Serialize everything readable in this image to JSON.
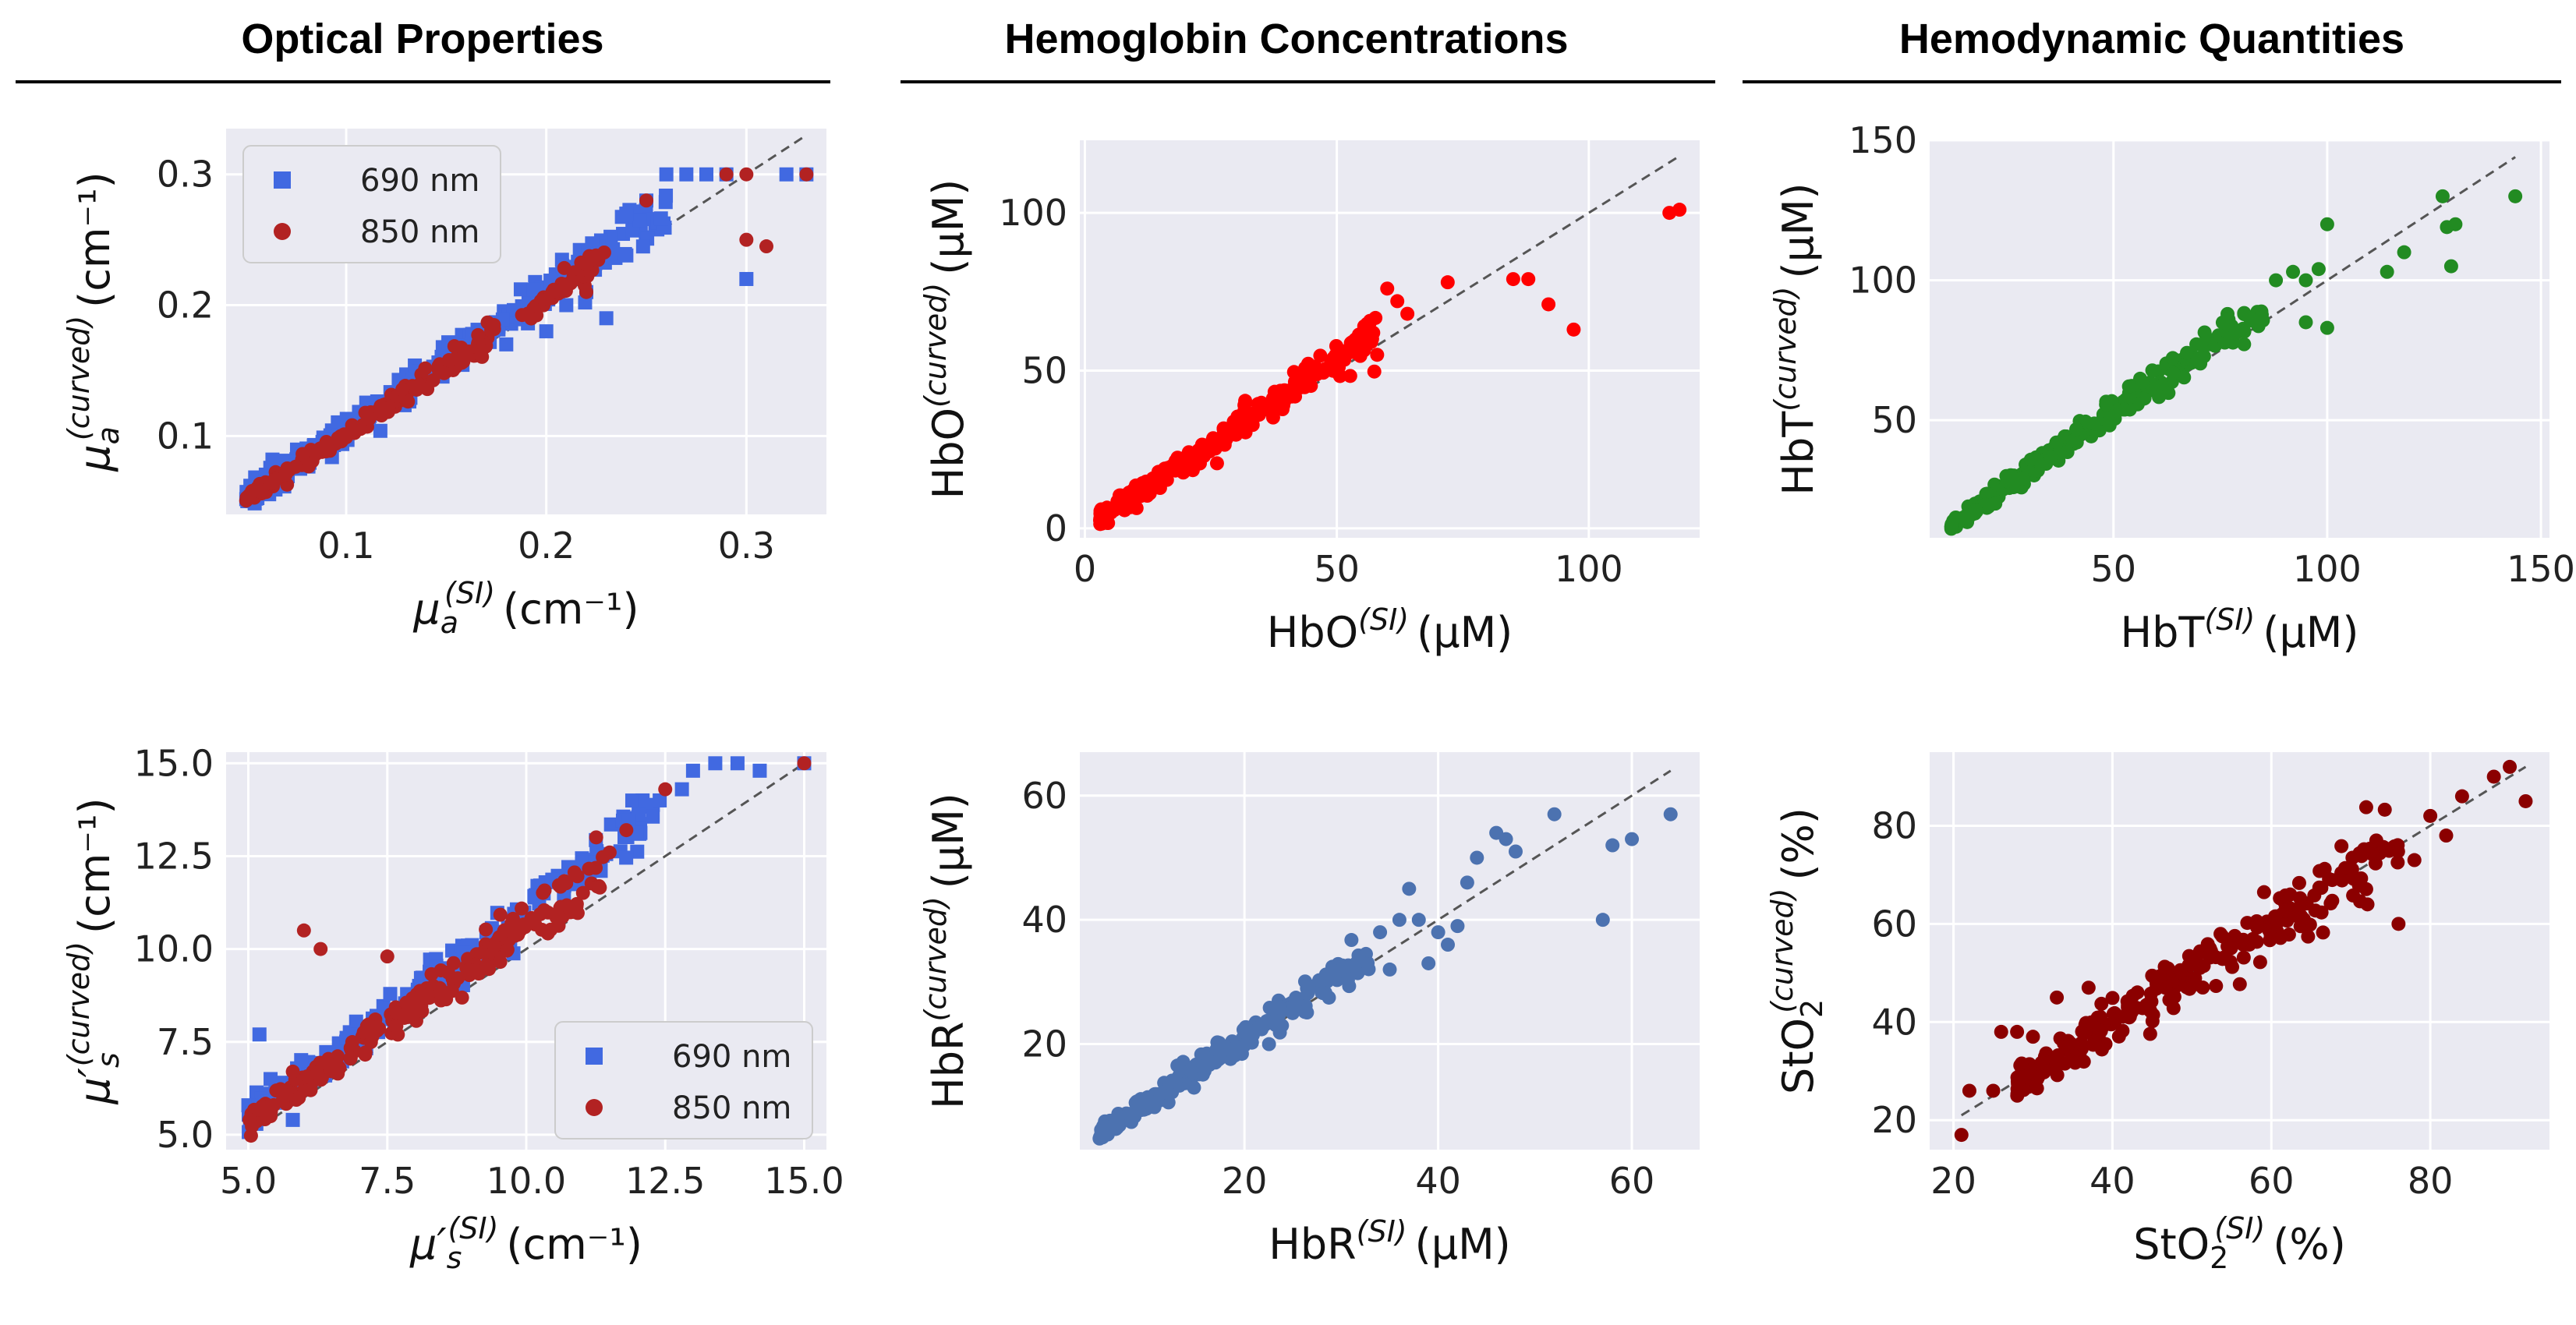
{
  "column_titles": [
    "Optical Properties",
    "Hemoglobin Concentrations",
    "Hemodynamic Quantities"
  ],
  "chart_data": [
    {
      "id": "mua",
      "type": "scatter",
      "xlabel": {
        "base": "μ",
        "sub": "a",
        "sup": "(SI)",
        "unit": "(cm⁻¹)"
      },
      "ylabel": {
        "base": "μ",
        "sub": "a",
        "sup": "(curved)",
        "unit": "(cm⁻¹)"
      },
      "xlim": [
        0.04,
        0.34
      ],
      "ylim": [
        0.04,
        0.335
      ],
      "xticks": [
        "0.1",
        "0.2",
        "0.3"
      ],
      "yticks": [
        "0.1",
        "0.2",
        "0.3"
      ],
      "xtick_values": [
        0.1,
        0.2,
        0.3
      ],
      "ytick_values": [
        0.1,
        0.2,
        0.3
      ],
      "identity_line": [
        0.05,
        0.33
      ],
      "legend": {
        "position": "top-left",
        "entries": [
          {
            "label": "690 nm",
            "color": "#4169E1",
            "marker": "square"
          },
          {
            "label": "850 nm",
            "color": "#B22222",
            "marker": "circle"
          }
        ]
      },
      "series": [
        {
          "name": "690 nm",
          "color": "#4169E1",
          "marker": "square",
          "n": 220,
          "range": [
            0.05,
            0.26
          ],
          "slope": 1.06,
          "noise": 0.007,
          "extra": [
            [
              0.24,
              0.27
            ],
            [
              0.25,
              0.28
            ],
            [
              0.26,
              0.3
            ],
            [
              0.27,
              0.3
            ],
            [
              0.28,
              0.3
            ],
            [
              0.29,
              0.3
            ],
            [
              0.3,
              0.22
            ],
            [
              0.32,
              0.3
            ],
            [
              0.33,
              0.3
            ],
            [
              0.22,
              0.21
            ],
            [
              0.23,
              0.19
            ],
            [
              0.2,
              0.18
            ],
            [
              0.21,
              0.2
            ],
            [
              0.18,
              0.17
            ]
          ]
        },
        {
          "name": "850 nm",
          "color": "#B22222",
          "marker": "circle",
          "n": 200,
          "range": [
            0.05,
            0.23
          ],
          "slope": 1.02,
          "noise": 0.004,
          "extra": [
            [
              0.25,
              0.28
            ],
            [
              0.29,
              0.3
            ],
            [
              0.3,
              0.3
            ],
            [
              0.3,
              0.25
            ],
            [
              0.31,
              0.245
            ],
            [
              0.33,
              0.3
            ],
            [
              0.22,
              0.21
            ]
          ]
        }
      ]
    },
    {
      "id": "hbo",
      "type": "scatter",
      "xlabel": {
        "base": "HbO",
        "sub": "",
        "sup": "(SI)",
        "unit": "(μM)"
      },
      "ylabel": {
        "base": "HbO",
        "sub": "",
        "sup": "(curved)",
        "unit": "(μM)"
      },
      "xlim": [
        -1,
        122
      ],
      "ylim": [
        -3,
        123
      ],
      "xticks": [
        "0",
        "50",
        "100"
      ],
      "yticks": [
        "0",
        "50",
        "100"
      ],
      "xtick_values": [
        0,
        50,
        100
      ],
      "ytick_values": [
        0,
        50,
        100
      ],
      "identity_line": [
        3,
        118
      ],
      "series": [
        {
          "name": "HbO",
          "color": "#FF0000",
          "marker": "circle",
          "n": 230,
          "range": [
            3,
            58
          ],
          "slope": 1.08,
          "noise": 2.5,
          "extra": [
            [
              60,
              76
            ],
            [
              62,
              72
            ],
            [
              64,
              68
            ],
            [
              72,
              78
            ],
            [
              85,
              79
            ],
            [
              88,
              79
            ],
            [
              92,
              71
            ],
            [
              97,
              63
            ],
            [
              116,
              100
            ],
            [
              118,
              101
            ],
            [
              55,
              60
            ],
            [
              58,
              55
            ]
          ]
        }
      ]
    },
    {
      "id": "hbt",
      "type": "scatter",
      "xlabel": {
        "base": "HbT",
        "sub": "",
        "sup": "(SI)",
        "unit": "(μM)"
      },
      "ylabel": {
        "base": "HbT",
        "sub": "",
        "sup": "(curved)",
        "unit": "(μM)"
      },
      "xlim": [
        7,
        152
      ],
      "ylim": [
        8,
        150
      ],
      "xticks": [
        "50",
        "100",
        "150"
      ],
      "yticks": [
        "50",
        "100",
        "150"
      ],
      "xtick_values": [
        50,
        100,
        150
      ],
      "ytick_values": [
        50,
        100,
        150
      ],
      "identity_line": [
        12,
        144
      ],
      "series": [
        {
          "name": "HbT",
          "color": "#228B22",
          "marker": "circle",
          "n": 230,
          "range": [
            12,
            85
          ],
          "slope": 1.06,
          "noise": 2.6,
          "extra": [
            [
              88,
              100
            ],
            [
              92,
              103
            ],
            [
              95,
              100
            ],
            [
              98,
              104
            ],
            [
              100,
              83
            ],
            [
              95,
              85
            ],
            [
              114,
              103
            ],
            [
              118,
              110
            ],
            [
              127,
              130
            ],
            [
              128,
              119
            ],
            [
              129,
              105
            ],
            [
              130,
              120
            ],
            [
              144,
              130
            ],
            [
              100,
              120
            ]
          ]
        }
      ]
    },
    {
      "id": "mus",
      "type": "scatter",
      "xlabel": {
        "base": "μ′",
        "sub": "s",
        "sup": "(SI)",
        "unit": "(cm⁻¹)"
      },
      "ylabel": {
        "base": "μ′",
        "sub": "s",
        "sup": "(curved)",
        "unit": "(cm⁻¹)"
      },
      "xlim": [
        4.6,
        15.4
      ],
      "ylim": [
        4.6,
        15.3
      ],
      "xticks": [
        "5.0",
        "7.5",
        "10.0",
        "12.5",
        "15.0"
      ],
      "yticks": [
        "5.0",
        "7.5",
        "10.0",
        "12.5",
        "15.0"
      ],
      "xtick_values": [
        5,
        7.5,
        10,
        12.5,
        15
      ],
      "ytick_values": [
        5,
        7.5,
        10,
        12.5,
        15
      ],
      "identity_line": [
        5,
        15
      ],
      "legend": {
        "position": "bottom-right",
        "entries": [
          {
            "label": "690 nm",
            "color": "#4169E1",
            "marker": "square"
          },
          {
            "label": "850 nm",
            "color": "#B22222",
            "marker": "circle"
          }
        ]
      },
      "series": [
        {
          "name": "690 nm",
          "color": "#4169E1",
          "marker": "square",
          "n": 230,
          "range": [
            5,
            12.3
          ],
          "slope": 1.1,
          "noise": 0.3,
          "extra": [
            [
              5.2,
              7.7
            ],
            [
              5.4,
              6.5
            ],
            [
              5.5,
              6.2
            ],
            [
              5.8,
              5.4
            ],
            [
              12.4,
              14
            ],
            [
              12.8,
              14.3
            ],
            [
              13,
              14.8
            ],
            [
              13.4,
              15
            ],
            [
              13.8,
              15
            ],
            [
              14.2,
              14.8
            ],
            [
              15,
              15
            ]
          ]
        },
        {
          "name": "850 nm",
          "color": "#B22222",
          "marker": "circle",
          "n": 210,
          "range": [
            5,
            11.4
          ],
          "slope": 1.06,
          "noise": 0.25,
          "extra": [
            [
              5.4,
              5.5
            ],
            [
              6,
              10.5
            ],
            [
              6.3,
              10
            ],
            [
              7.5,
              9.8
            ],
            [
              11.5,
              12.6
            ],
            [
              11.8,
              13.2
            ],
            [
              12.5,
              14.3
            ],
            [
              15,
              15
            ],
            [
              5.8,
              6.7
            ]
          ]
        }
      ]
    },
    {
      "id": "hbr",
      "type": "scatter",
      "xlabel": {
        "base": "HbR",
        "sub": "",
        "sup": "(SI)",
        "unit": "(μM)"
      },
      "ylabel": {
        "base": "HbR",
        "sub": "",
        "sup": "(curved)",
        "unit": "(μM)"
      },
      "xlim": [
        3,
        67
      ],
      "ylim": [
        3,
        67
      ],
      "xticks": [
        "20",
        "40",
        "60"
      ],
      "yticks": [
        "20",
        "40",
        "60"
      ],
      "xtick_values": [
        20,
        40,
        60
      ],
      "ytick_values": [
        20,
        40,
        60
      ],
      "identity_line": [
        5,
        64
      ],
      "series": [
        {
          "name": "HbR",
          "color": "#4C72B0",
          "marker": "circle",
          "n": 230,
          "range": [
            5,
            33
          ],
          "slope": 1.05,
          "noise": 1.0,
          "extra": [
            [
              34,
              38
            ],
            [
              36,
              40
            ],
            [
              37,
              45
            ],
            [
              38,
              40
            ],
            [
              39,
              33
            ],
            [
              40,
              38
            ],
            [
              41,
              36
            ],
            [
              42,
              39
            ],
            [
              43,
              46
            ],
            [
              44,
              50
            ],
            [
              46,
              54
            ],
            [
              47,
              53
            ],
            [
              48,
              51
            ],
            [
              52,
              57
            ],
            [
              57,
              40
            ],
            [
              58,
              52
            ],
            [
              60,
              53
            ],
            [
              64,
              57
            ],
            [
              35,
              32
            ]
          ]
        }
      ]
    },
    {
      "id": "sto2",
      "type": "scatter",
      "xlabel": {
        "base": "StO",
        "sub": "2",
        "sup": "(SI)",
        "unit": "(%)"
      },
      "ylabel": {
        "base": "StO",
        "sub": "2",
        "sup": "(curved)",
        "unit": "(%)"
      },
      "xlim": [
        17,
        95
      ],
      "ylim": [
        14,
        95
      ],
      "xticks": [
        "20",
        "40",
        "60",
        "80"
      ],
      "yticks": [
        "20",
        "40",
        "60",
        "80"
      ],
      "xtick_values": [
        20,
        40,
        60,
        80
      ],
      "ytick_values": [
        20,
        40,
        60,
        80
      ],
      "identity_line": [
        21,
        92
      ],
      "series": [
        {
          "name": "StO2",
          "color": "#8B0000",
          "marker": "circle",
          "n": 260,
          "range": [
            28,
            76
          ],
          "slope": 1.0,
          "noise": 2.8,
          "extra": [
            [
              21,
              17
            ],
            [
              22,
              26
            ],
            [
              25,
              26
            ],
            [
              26,
              38
            ],
            [
              28,
              38
            ],
            [
              30,
              37
            ],
            [
              33,
              45
            ],
            [
              37,
              47
            ],
            [
              76,
              60
            ],
            [
              78,
              73
            ],
            [
              80,
              82
            ],
            [
              82,
              78
            ],
            [
              84,
              86
            ],
            [
              88,
              90
            ],
            [
              90,
              92
            ],
            [
              92,
              85
            ]
          ]
        }
      ]
    }
  ]
}
